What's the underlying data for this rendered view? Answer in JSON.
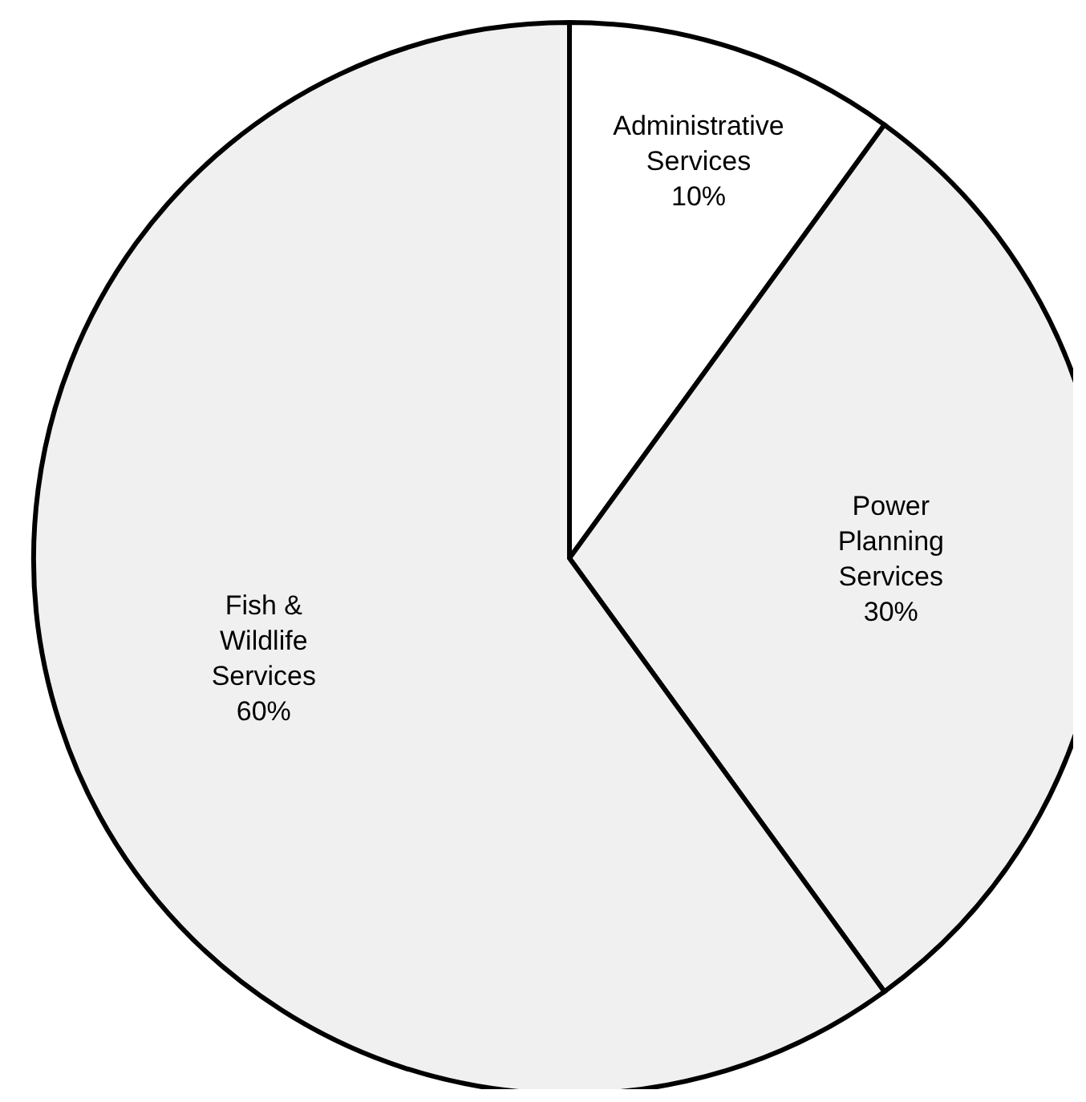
{
  "chart_data": {
    "type": "pie",
    "categories": [
      "Administrative Services",
      "Power Planning Services",
      "Fish & Wildlife Services"
    ],
    "values": [
      10,
      30,
      60
    ],
    "value_labels": [
      "10%",
      "30%",
      "60%"
    ],
    "colors": [
      "#ffffff",
      "#f0f0f0",
      "#f0f0f0"
    ]
  }
}
